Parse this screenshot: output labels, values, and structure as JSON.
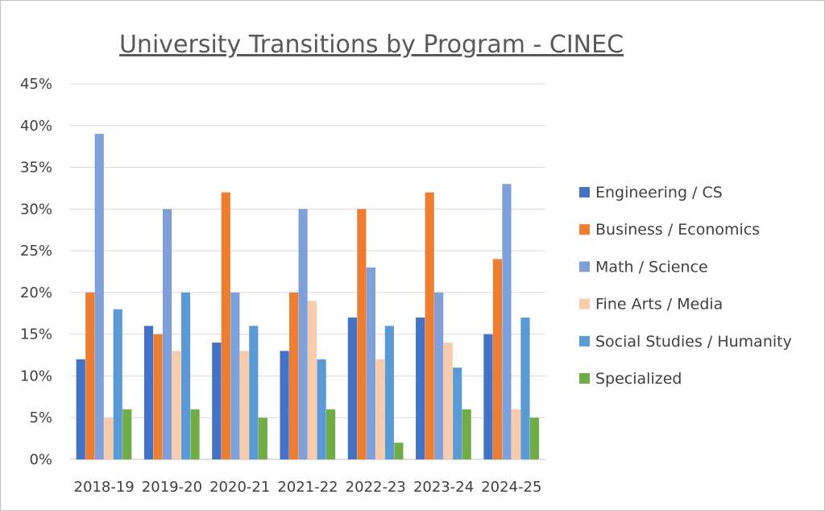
{
  "chart_data": {
    "type": "bar",
    "title": "University Transitions by Program - CINEC",
    "xlabel": "",
    "ylabel": "",
    "ylim": [
      0,
      45
    ],
    "y_ticks": [
      "0%",
      "5%",
      "10%",
      "15%",
      "20%",
      "25%",
      "30%",
      "35%",
      "40%",
      "45%"
    ],
    "grid": true,
    "legend_position": "right",
    "categories": [
      "2018-19",
      "2019-20",
      "2020-21",
      "2021-22",
      "2022-23",
      "2023-24",
      "2024-25"
    ],
    "series": [
      {
        "name": "Engineering / CS",
        "color": "#4472c4",
        "values": [
          12,
          16,
          14,
          13,
          17,
          17,
          15
        ]
      },
      {
        "name": "Business / Economics",
        "color": "#ed7d31",
        "values": [
          20,
          15,
          32,
          20,
          30,
          32,
          24
        ]
      },
      {
        "name": "Math / Science",
        "color": "#7f9fd9",
        "values": [
          39,
          30,
          20,
          30,
          23,
          20,
          33
        ]
      },
      {
        "name": "Fine Arts / Media",
        "color": "#f8cbad",
        "values": [
          5,
          13,
          13,
          19,
          12,
          14,
          6
        ]
      },
      {
        "name": "Social Studies / Humanity",
        "color": "#5b9bd5",
        "values": [
          18,
          20,
          16,
          12,
          16,
          11,
          17
        ]
      },
      {
        "name": "Specialized",
        "color": "#70ad47",
        "values": [
          6,
          6,
          5,
          6,
          2,
          6,
          5
        ]
      }
    ]
  }
}
